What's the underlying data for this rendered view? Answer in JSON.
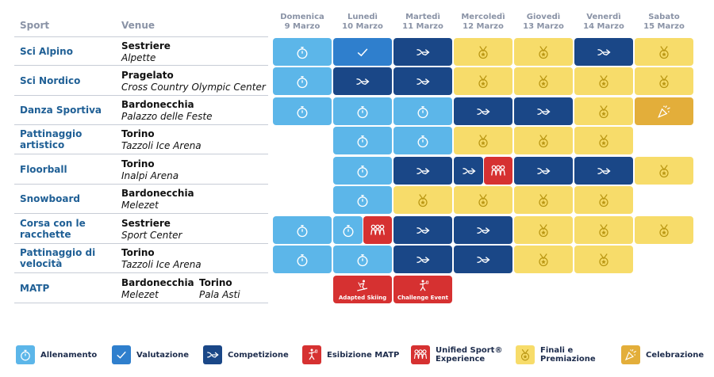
{
  "header": {
    "sport": "Sport",
    "venue": "Venue"
  },
  "days": [
    {
      "name": "Domenica",
      "date": "9 Marzo"
    },
    {
      "name": "Lunedì",
      "date": "10 Marzo"
    },
    {
      "name": "Martedì",
      "date": "11 Marzo"
    },
    {
      "name": "Mercoledì",
      "date": "12 Marzo"
    },
    {
      "name": "Giovedì",
      "date": "13 Marzo"
    },
    {
      "name": "Venerdì",
      "date": "14 Marzo"
    },
    {
      "name": "Sabato",
      "date": "15 Marzo"
    }
  ],
  "sports": [
    {
      "name": "Sci Alpino",
      "city": "Sestriere",
      "place": "Alpette"
    },
    {
      "name": "Sci Nordico",
      "city": "Pragelato",
      "place": "Cross Country Olympic Center"
    },
    {
      "name": "Danza Sportiva",
      "city": "Bardonecchia",
      "place": "Palazzo delle Feste"
    },
    {
      "name": "Pattinaggio artistico",
      "city": "Torino",
      "place": "Tazzoli Ice Arena"
    },
    {
      "name": "Floorball",
      "city": "Torino",
      "place": "Inalpi Arena"
    },
    {
      "name": "Snowboard",
      "city": "Bardonecchia",
      "place": "Melezet"
    },
    {
      "name": "Corsa con le racchette",
      "city": "Sestriere",
      "place": "Sport Center"
    },
    {
      "name": "Pattinaggio di velocità",
      "city": "Torino",
      "place": "Tazzoli Ice Arena"
    },
    {
      "name": "MATP",
      "city": "Bardonecchia",
      "place": "Melezet",
      "city2": "Torino",
      "place2": "Pala Asti"
    }
  ],
  "matp_events": {
    "adapted": "Adapted Skiing",
    "challenge": "Challenge Event"
  },
  "legend": {
    "allenamento": "Allenamento",
    "valutazione": "Valutazione",
    "competizione": "Competizione",
    "esibizione": "Esibizione MATP",
    "unified_1": "Unified Sport®",
    "unified_2": "Experience",
    "finali_1": "Finali e",
    "finali_2": "Premiazione",
    "celebrazione": "Celebrazione"
  },
  "colors": {
    "allenamento": "#5cb6e9",
    "valutazione": "#2f7fcd",
    "competizione": "#1a4787",
    "esibizione": "#d63131",
    "finali": "#f7dc6a",
    "celebrazione": "#e3ae3a"
  }
}
